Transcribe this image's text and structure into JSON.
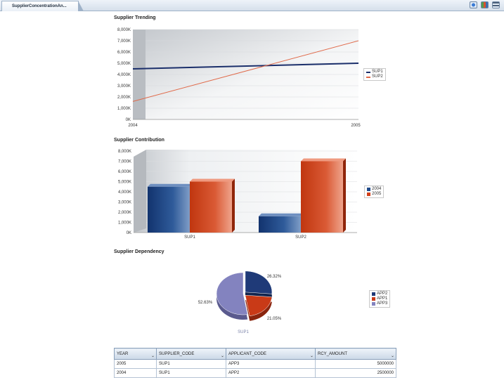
{
  "tab": {
    "label": "SupplierConcentrationAn..."
  },
  "toolbar": {
    "icons": [
      "refresh-icon",
      "view-options-icon",
      "settings-icon"
    ]
  },
  "trending": {
    "title": "Supplier Trending",
    "legend": [
      {
        "name": "SUP1",
        "color": "#1b2f6b"
      },
      {
        "name": "SUP2",
        "color": "#e06a4a"
      }
    ],
    "y_ticks": [
      "8,000K",
      "7,000K",
      "6,000K",
      "5,000K",
      "4,000K",
      "3,000K",
      "2,000K",
      "1,000K",
      "0K"
    ],
    "x_ticks": [
      "2004",
      "2005"
    ]
  },
  "contribution": {
    "title": "Supplier Contribution",
    "legend": [
      {
        "name": "2004",
        "color": "#1f4a8a"
      },
      {
        "name": "2005",
        "color": "#d2401a"
      }
    ],
    "y_ticks": [
      "8,000K",
      "7,000K",
      "6,000K",
      "5,000K",
      "4,000K",
      "3,000K",
      "2,000K",
      "1,000K",
      "0K"
    ],
    "x_ticks": [
      "SUP1",
      "SUP2"
    ]
  },
  "dependency": {
    "title": "Supplier Dependency",
    "legend": [
      {
        "name": "APP2",
        "color": "#1f3a78"
      },
      {
        "name": "APP1",
        "color": "#c93a17"
      },
      {
        "name": "APP3",
        "color": "#8383bf"
      }
    ],
    "slice_labels": [
      "26.32%",
      "21.05%",
      "52.63%"
    ],
    "caption": "SUP1"
  },
  "chart_data": [
    {
      "type": "line",
      "title": "Supplier Trending",
      "x": [
        "2004",
        "2005"
      ],
      "series": [
        {
          "name": "SUP1",
          "values": [
            4500000,
            5000000
          ]
        },
        {
          "name": "SUP2",
          "values": [
            1600000,
            7000000
          ]
        }
      ],
      "ylim": [
        0,
        8000000
      ],
      "xlabel": "",
      "ylabel": ""
    },
    {
      "type": "bar",
      "title": "Supplier Contribution",
      "categories": [
        "SUP1",
        "SUP2"
      ],
      "series": [
        {
          "name": "2004",
          "values": [
            4500000,
            1600000
          ]
        },
        {
          "name": "2005",
          "values": [
            5000000,
            7000000
          ]
        }
      ],
      "ylim": [
        0,
        8000000
      ],
      "xlabel": "",
      "ylabel": ""
    },
    {
      "type": "pie",
      "title": "Supplier Dependency",
      "categories": [
        "APP2",
        "APP1",
        "APP3"
      ],
      "values": [
        26.32,
        21.05,
        52.63
      ],
      "caption": "SUP1"
    }
  ],
  "table": {
    "columns": [
      "YEAR",
      "SUPPLIER_CODE",
      "APPLICANT_CODE",
      "RCY_AMOUNT"
    ],
    "rows": [
      [
        "2005",
        "SUP1",
        "APP3",
        "5000000"
      ],
      [
        "2004",
        "SUP1",
        "APP2",
        "2500000"
      ]
    ]
  }
}
